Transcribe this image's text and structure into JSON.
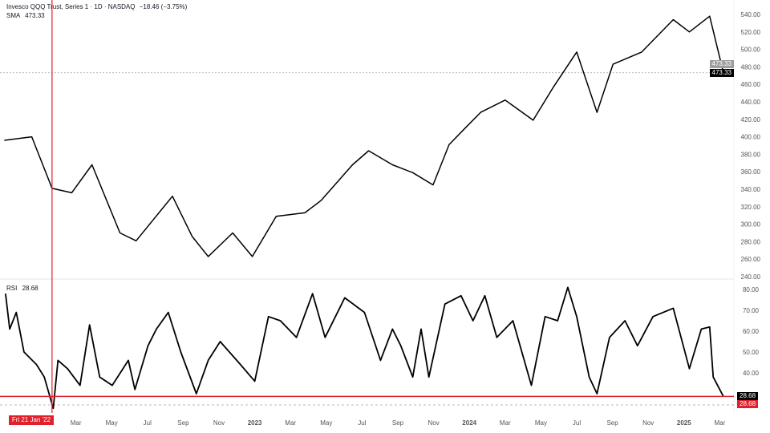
{
  "header": {
    "symbol_line": "Invesco QQQ Trust, Series 1 · 1D · NASDAQ",
    "change": "−18.46 (−3.75%)",
    "sma_label": "SMA",
    "sma_value": "473.33",
    "rsi_label": "RSI",
    "rsi_value": "28.68"
  },
  "badges": {
    "sma_price": "473.33",
    "last_price": "473.33",
    "rsi_last": "28.68",
    "rsi_cross": "28.68",
    "crosshair_date": "Fri 21 Jan '22"
  },
  "colors": {
    "line": "#000000",
    "crosshair": "#e0202b",
    "sma_badge": "#9e9e9e",
    "last_badge": "#000000",
    "grid": "#e6e6e6"
  },
  "chart_data": [
    {
      "type": "line",
      "title": "Invesco QQQ Trust, Series 1 · 1D · NASDAQ",
      "ylim": [
        240,
        540
      ],
      "yticks": [
        "540.00",
        "520.00",
        "500.00",
        "480.00",
        "460.00",
        "440.00",
        "420.00",
        "400.00",
        "380.00",
        "360.00",
        "340.00",
        "320.00",
        "300.00",
        "280.00",
        "260.00",
        "240.00"
      ],
      "ytick_values": [
        540,
        520,
        500,
        480,
        460,
        440,
        420,
        400,
        380,
        360,
        340,
        320,
        300,
        280,
        260,
        240
      ],
      "x": [
        "2021-11-01",
        "2021-12-17",
        "2022-01-21",
        "2022-02-24",
        "2022-03-28",
        "2022-05-15",
        "2022-06-12",
        "2022-08-13",
        "2022-09-16",
        "2022-10-13",
        "2022-11-24",
        "2022-12-27",
        "2023-02-07",
        "2023-03-25",
        "2023-04-22",
        "2023-06-15",
        "2023-07-12",
        "2023-08-22",
        "2023-09-26",
        "2023-10-30",
        "2023-11-27",
        "2023-12-24",
        "2024-01-20",
        "2024-03-01",
        "2024-04-18",
        "2024-05-21",
        "2024-07-01",
        "2024-08-05",
        "2024-09-02",
        "2024-10-20",
        "2024-12-13",
        "2025-01-10",
        "2025-02-14",
        "2025-03-07"
      ],
      "y": [
        396,
        400,
        341,
        336,
        368,
        290,
        281,
        332,
        286,
        263,
        290,
        263,
        309,
        313,
        327,
        368,
        384,
        368,
        359,
        345,
        391,
        410,
        428,
        442,
        419,
        456,
        497,
        428,
        483,
        497,
        534,
        520,
        538,
        473.33
      ],
      "reference_line": 473.33
    },
    {
      "type": "line",
      "title": "RSI",
      "ylim": [
        20,
        82
      ],
      "yticks": [
        "80.00",
        "70.00",
        "60.00",
        "50.00",
        "40.00"
      ],
      "ytick_values": [
        80,
        70,
        60,
        50,
        40
      ],
      "x": [
        "2021-11-03",
        "2021-11-10",
        "2021-11-21",
        "2021-12-04",
        "2021-12-25",
        "2022-01-08",
        "2022-01-23",
        "2022-01-31",
        "2022-02-17",
        "2022-03-08",
        "2022-03-24",
        "2022-04-11",
        "2022-05-02",
        "2022-05-29",
        "2022-06-10",
        "2022-07-02",
        "2022-07-16",
        "2022-08-06",
        "2022-08-27",
        "2022-09-23",
        "2022-10-13",
        "2022-11-03",
        "2022-12-07",
        "2023-01-01",
        "2023-01-24",
        "2023-02-14",
        "2023-03-11",
        "2023-04-08",
        "2023-04-29",
        "2023-06-02",
        "2023-07-05",
        "2023-08-02",
        "2023-08-22",
        "2023-09-06",
        "2023-09-26",
        "2023-10-10",
        "2023-10-23",
        "2023-11-20",
        "2023-12-17",
        "2024-01-07",
        "2024-01-27",
        "2024-02-17",
        "2024-03-14",
        "2024-04-15",
        "2024-05-08",
        "2024-05-29",
        "2024-06-16",
        "2024-07-01",
        "2024-07-22",
        "2024-08-05",
        "2024-08-26",
        "2024-09-22",
        "2024-10-13",
        "2024-11-09",
        "2024-12-13",
        "2025-01-10",
        "2025-01-30",
        "2025-02-14",
        "2025-02-20",
        "2025-03-07"
      ],
      "y": [
        78,
        61,
        69,
        50,
        44,
        38,
        23,
        46,
        42,
        34,
        63,
        38,
        34,
        46,
        32,
        53,
        61,
        69,
        50,
        30,
        46,
        55,
        44,
        36,
        67,
        65,
        57,
        78,
        57,
        76,
        69,
        46,
        61,
        53,
        38,
        61,
        38,
        73,
        77,
        65,
        77,
        57,
        65,
        34,
        67,
        65,
        81,
        67,
        38,
        30,
        57,
        65,
        53,
        67,
        71,
        42,
        61,
        62,
        38,
        28.68
      ],
      "reference_line": 28.68
    }
  ],
  "x_axis": {
    "labels": [
      {
        "label": "Mar",
        "date": "2022-03-01"
      },
      {
        "label": "May",
        "date": "2022-05-01"
      },
      {
        "label": "Jul",
        "date": "2022-07-01"
      },
      {
        "label": "Sep",
        "date": "2022-09-01"
      },
      {
        "label": "Nov",
        "date": "2022-11-01"
      },
      {
        "label": "2023",
        "date": "2023-01-01",
        "bold": true
      },
      {
        "label": "Mar",
        "date": "2023-03-01"
      },
      {
        "label": "May",
        "date": "2023-05-01"
      },
      {
        "label": "Jul",
        "date": "2023-07-01"
      },
      {
        "label": "Sep",
        "date": "2023-09-01"
      },
      {
        "label": "Nov",
        "date": "2023-11-01"
      },
      {
        "label": "2024",
        "date": "2024-01-01",
        "bold": true
      },
      {
        "label": "Mar",
        "date": "2024-03-01"
      },
      {
        "label": "May",
        "date": "2024-05-01"
      },
      {
        "label": "Jul",
        "date": "2024-07-01"
      },
      {
        "label": "Sep",
        "date": "2024-09-01"
      },
      {
        "label": "Nov",
        "date": "2024-11-01"
      },
      {
        "label": "2025",
        "date": "2025-01-01",
        "bold": true
      },
      {
        "label": "Mar",
        "date": "2025-03-01"
      }
    ],
    "crosshair_date": "2022-01-21"
  }
}
